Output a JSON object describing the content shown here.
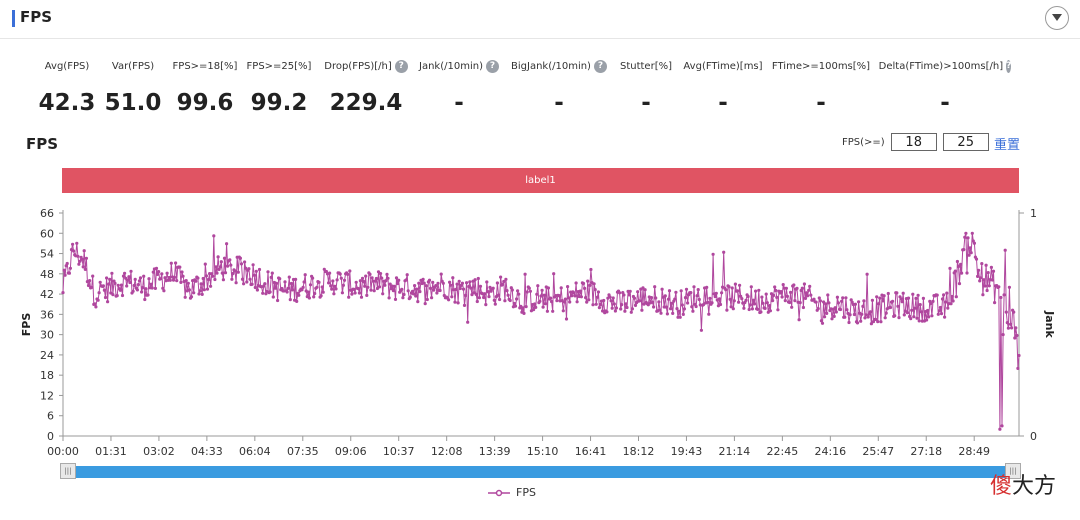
{
  "section": {
    "title": "FPS"
  },
  "metrics": [
    {
      "label": "Avg(FPS)",
      "value": "42.3",
      "help": false
    },
    {
      "label": "Var(FPS)",
      "value": "51.0",
      "help": false
    },
    {
      "label": "FPS>=18[%]",
      "value": "99.6",
      "help": false
    },
    {
      "label": "FPS>=25[%]",
      "value": "99.2",
      "help": false
    },
    {
      "label": "Drop(FPS)[/h]",
      "value": "229.4",
      "help": true
    },
    {
      "label": "Jank(/10min)",
      "value": "-",
      "help": true
    },
    {
      "label": "BigJank(/10min)",
      "value": "-",
      "help": true
    },
    {
      "label": "Stutter[%]",
      "value": "-",
      "help": false
    },
    {
      "label": "Avg(FTime)[ms]",
      "value": "-",
      "help": false
    },
    {
      "label": "FTime>=100ms[%]",
      "value": "-",
      "help": false
    },
    {
      "label": "Delta(FTime)>100ms[/h]",
      "value": "-",
      "help": true
    }
  ],
  "help_glyph": "?",
  "chart_header": {
    "title": "FPS",
    "threshold_label": "FPS(>=)",
    "threshold_low": "18",
    "threshold_high": "25",
    "reset_label": "重置"
  },
  "label_band": {
    "text": "label1",
    "color": "#e05463"
  },
  "chart_data": {
    "type": "line",
    "ylabel": "FPS",
    "y2label": "Jank",
    "ylim": [
      0,
      66
    ],
    "yticks": [
      "0",
      "6",
      "12",
      "18",
      "24",
      "30",
      "36",
      "42",
      "48",
      "54",
      "60",
      "66"
    ],
    "y2ticks": [
      "0",
      "1"
    ],
    "xticks": [
      "00:00",
      "01:31",
      "03:02",
      "04:33",
      "06:04",
      "07:35",
      "09:06",
      "10:37",
      "12:08",
      "13:39",
      "15:10",
      "16:41",
      "18:12",
      "19:43",
      "21:14",
      "22:45",
      "24:16",
      "25:47",
      "27:18",
      "28:49"
    ],
    "x_max_seconds": 1814,
    "grid": false,
    "legend": "bottom-center",
    "series": [
      {
        "name": "FPS",
        "color": "#b0479e",
        "profile": [
          [
            0,
            44
          ],
          [
            20,
            55
          ],
          [
            40,
            52
          ],
          [
            60,
            42
          ],
          [
            90,
            44
          ],
          [
            120,
            46
          ],
          [
            150,
            44
          ],
          [
            180,
            46
          ],
          [
            210,
            48
          ],
          [
            240,
            43
          ],
          [
            270,
            46
          ],
          [
            300,
            50
          ],
          [
            330,
            49
          ],
          [
            360,
            48
          ],
          [
            390,
            45
          ],
          [
            420,
            43
          ],
          [
            450,
            44
          ],
          [
            480,
            45
          ],
          [
            510,
            46
          ],
          [
            540,
            45
          ],
          [
            570,
            44
          ],
          [
            600,
            45
          ],
          [
            630,
            44
          ],
          [
            660,
            44
          ],
          [
            690,
            43
          ],
          [
            720,
            45
          ],
          [
            750,
            43
          ],
          [
            780,
            44
          ],
          [
            810,
            42
          ],
          [
            840,
            44
          ],
          [
            870,
            40
          ],
          [
            900,
            41
          ],
          [
            930,
            40
          ],
          [
            960,
            41
          ],
          [
            990,
            43
          ],
          [
            1020,
            41
          ],
          [
            1050,
            39
          ],
          [
            1080,
            40
          ],
          [
            1110,
            41
          ],
          [
            1140,
            40
          ],
          [
            1170,
            39
          ],
          [
            1200,
            41
          ],
          [
            1230,
            42
          ],
          [
            1260,
            41
          ],
          [
            1290,
            41
          ],
          [
            1320,
            40
          ],
          [
            1350,
            41
          ],
          [
            1380,
            42
          ],
          [
            1410,
            41
          ],
          [
            1440,
            38
          ],
          [
            1470,
            39
          ],
          [
            1500,
            37
          ],
          [
            1530,
            37
          ],
          [
            1560,
            38
          ],
          [
            1590,
            39
          ],
          [
            1620,
            38
          ],
          [
            1650,
            38
          ],
          [
            1675,
            38
          ],
          [
            1695,
            46
          ],
          [
            1710,
            55
          ],
          [
            1725,
            58
          ],
          [
            1740,
            47
          ],
          [
            1755,
            46
          ],
          [
            1770,
            44
          ],
          [
            1785,
            43
          ],
          [
            1792,
            30
          ],
          [
            1800,
            37
          ],
          [
            1814,
            27
          ]
        ],
        "dips": [
          [
            1777,
            2
          ],
          [
            1781,
            3
          ],
          [
            1784,
            30
          ],
          [
            1788,
            55
          ],
          [
            1795,
            44
          ],
          [
            1800,
            32
          ],
          [
            1806,
            29
          ],
          [
            1812,
            20
          ]
        ]
      }
    ]
  },
  "slider": {
    "start": 0.0,
    "end": 1.0,
    "handle_glyph": "|||"
  },
  "legend": {
    "label": "FPS"
  },
  "watermark": {
    "part1": "傻",
    "part2": "大方"
  }
}
